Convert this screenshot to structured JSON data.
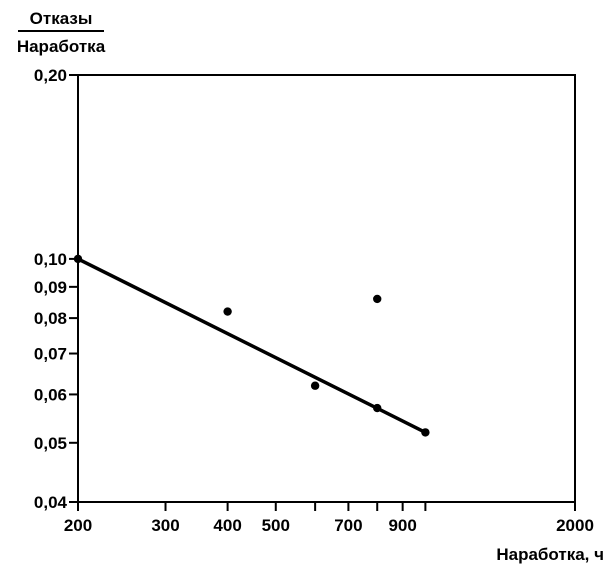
{
  "chart_data": {
    "type": "scatter",
    "ylabel_numerator": "Отказы",
    "ylabel_denominator": "Наработка",
    "xlabel": "Наработка, ч",
    "x_scale": "log",
    "y_scale": "log",
    "xlim": [
      200,
      2000
    ],
    "ylim": [
      0.04,
      0.2
    ],
    "x_ticks": [
      {
        "value": 200,
        "label": "200"
      },
      {
        "value": 300,
        "label": "300"
      },
      {
        "value": 400,
        "label": "400"
      },
      {
        "value": 500,
        "label": "500"
      },
      {
        "value": 600,
        "label": ""
      },
      {
        "value": 700,
        "label": "700"
      },
      {
        "value": 800,
        "label": ""
      },
      {
        "value": 900,
        "label": "900"
      },
      {
        "value": 1000,
        "label": ""
      },
      {
        "value": 2000,
        "label": "2000"
      }
    ],
    "y_ticks": [
      {
        "value": 0.04,
        "label": "0,04"
      },
      {
        "value": 0.05,
        "label": "0,05"
      },
      {
        "value": 0.06,
        "label": "0,06"
      },
      {
        "value": 0.07,
        "label": "0,07"
      },
      {
        "value": 0.08,
        "label": "0,08"
      },
      {
        "value": 0.09,
        "label": "0,09"
      },
      {
        "value": 0.1,
        "label": "0,10"
      },
      {
        "value": 0.2,
        "label": "0,20"
      }
    ],
    "points": [
      {
        "x": 200,
        "y": 0.1
      },
      {
        "x": 400,
        "y": 0.082
      },
      {
        "x": 600,
        "y": 0.062
      },
      {
        "x": 800,
        "y": 0.086
      },
      {
        "x": 800,
        "y": 0.057
      },
      {
        "x": 1000,
        "y": 0.052
      }
    ],
    "fit_line": {
      "x": [
        200,
        1000
      ],
      "y": [
        0.1,
        0.052
      ]
    },
    "grid": false
  }
}
